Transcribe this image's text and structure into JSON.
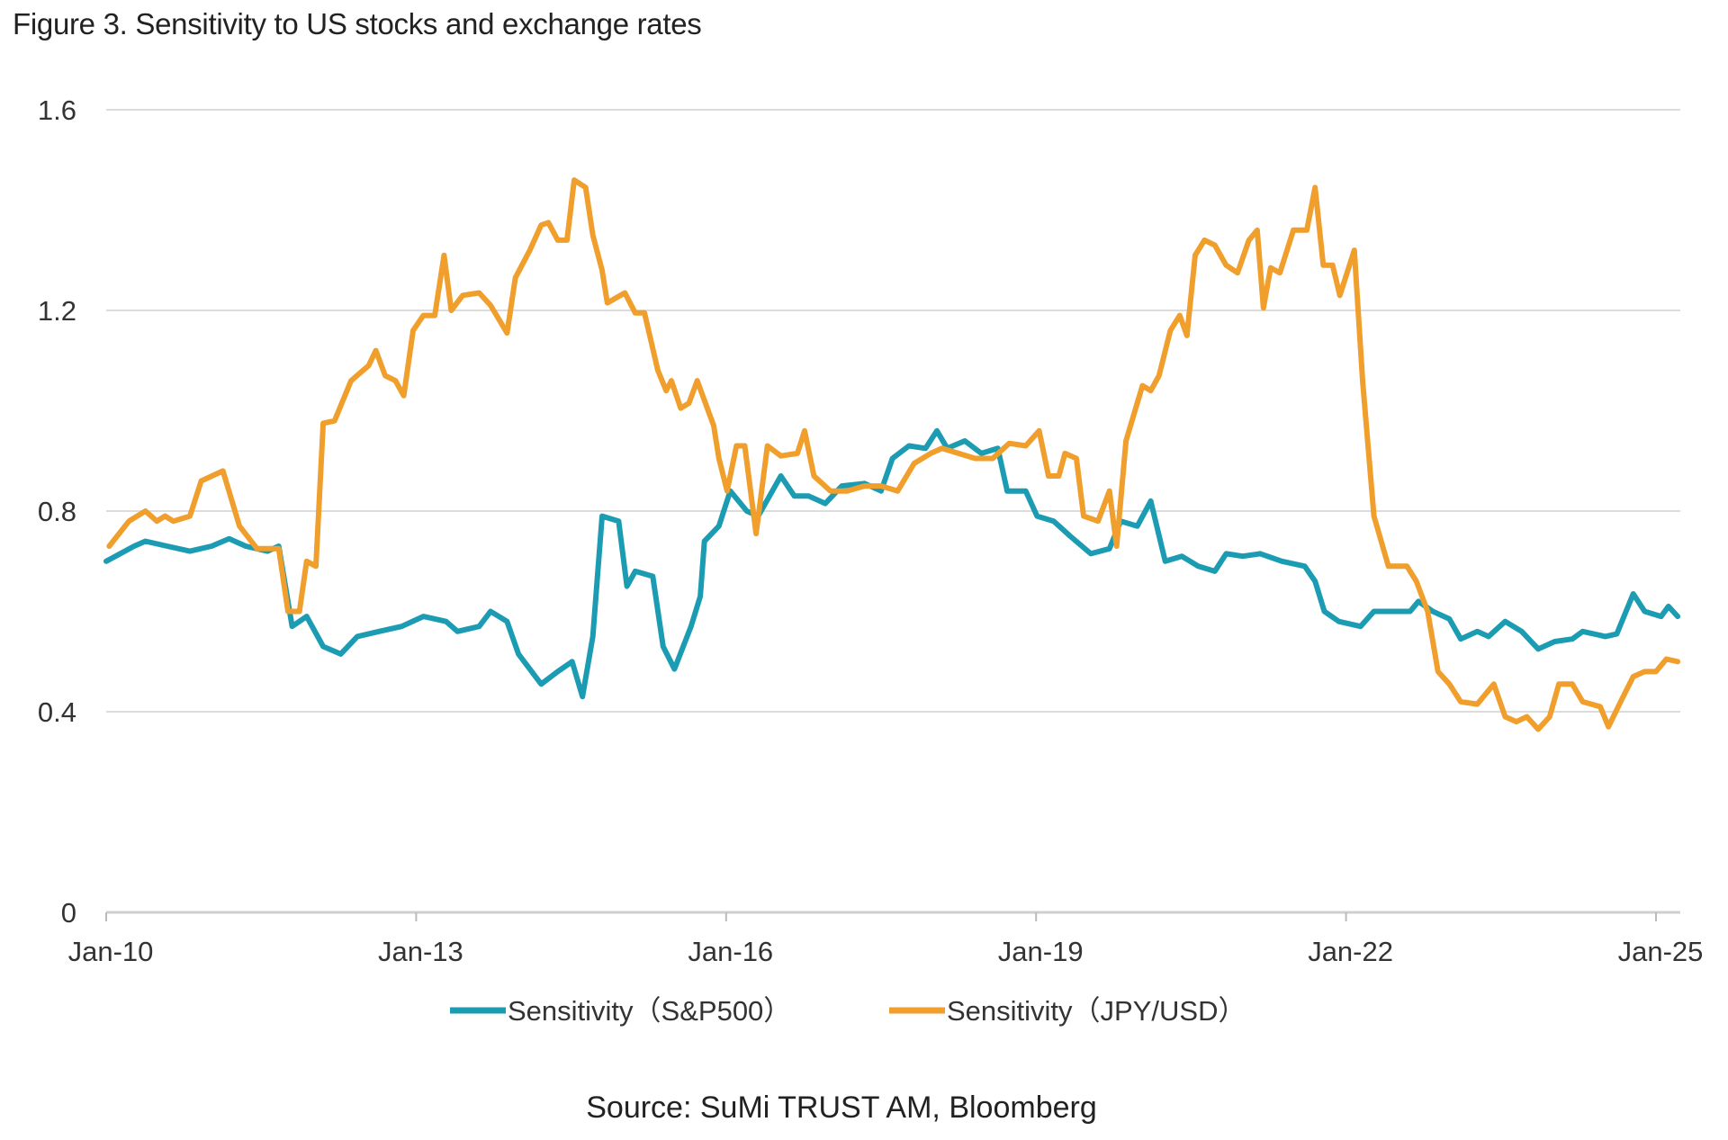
{
  "chart_data": {
    "type": "line",
    "title": "Figure 3. Sensitivity to US stocks and exchange rates",
    "source": "Source: SuMi TRUST AM, Bloomberg",
    "xlabel": "",
    "ylabel": "",
    "ylim": [
      0,
      1.6
    ],
    "xlim": [
      2010.0,
      2025.2
    ],
    "yticks": [
      0,
      0.4,
      0.8,
      1.2,
      1.6
    ],
    "ytick_labels": [
      "0",
      "0.4",
      "0.8",
      "1.2",
      "1.6"
    ],
    "xticks": [
      2010,
      2013,
      2016,
      2019,
      2022,
      2025
    ],
    "xtick_labels": [
      "Jan-10",
      "Jan-13",
      "Jan-16",
      "Jan-19",
      "Jan-22",
      "Jan-25"
    ],
    "grid": "horizontal",
    "legend_position": "bottom",
    "series": [
      {
        "name": "Sensitivity（S&P500）",
        "color": "#1b9cb3",
        "points": [
          [
            2010.0,
            0.7
          ],
          [
            2010.27,
            0.73
          ],
          [
            2010.38,
            0.74
          ],
          [
            2010.59,
            0.73
          ],
          [
            2010.81,
            0.72
          ],
          [
            2011.02,
            0.73
          ],
          [
            2011.19,
            0.745
          ],
          [
            2011.35,
            0.73
          ],
          [
            2011.56,
            0.72
          ],
          [
            2011.67,
            0.73
          ],
          [
            2011.8,
            0.57
          ],
          [
            2011.94,
            0.59
          ],
          [
            2012.1,
            0.53
          ],
          [
            2012.27,
            0.515
          ],
          [
            2012.43,
            0.55
          ],
          [
            2012.64,
            0.56
          ],
          [
            2012.86,
            0.57
          ],
          [
            2013.07,
            0.59
          ],
          [
            2013.29,
            0.58
          ],
          [
            2013.4,
            0.56
          ],
          [
            2013.61,
            0.57
          ],
          [
            2013.72,
            0.6
          ],
          [
            2013.88,
            0.58
          ],
          [
            2013.99,
            0.515
          ],
          [
            2014.21,
            0.455
          ],
          [
            2014.37,
            0.48
          ],
          [
            2014.51,
            0.5
          ],
          [
            2014.61,
            0.43
          ],
          [
            2014.71,
            0.55
          ],
          [
            2014.8,
            0.79
          ],
          [
            2014.96,
            0.78
          ],
          [
            2015.04,
            0.65
          ],
          [
            2015.12,
            0.68
          ],
          [
            2015.29,
            0.67
          ],
          [
            2015.39,
            0.53
          ],
          [
            2015.5,
            0.485
          ],
          [
            2015.66,
            0.57
          ],
          [
            2015.75,
            0.63
          ],
          [
            2015.79,
            0.74
          ],
          [
            2015.93,
            0.77
          ],
          [
            2016.04,
            0.84
          ],
          [
            2016.2,
            0.8
          ],
          [
            2016.31,
            0.79
          ],
          [
            2016.42,
            0.83
          ],
          [
            2016.53,
            0.87
          ],
          [
            2016.66,
            0.83
          ],
          [
            2016.8,
            0.83
          ],
          [
            2016.96,
            0.815
          ],
          [
            2017.12,
            0.85
          ],
          [
            2017.34,
            0.855
          ],
          [
            2017.5,
            0.84
          ],
          [
            2017.61,
            0.905
          ],
          [
            2017.77,
            0.93
          ],
          [
            2017.93,
            0.925
          ],
          [
            2018.04,
            0.96
          ],
          [
            2018.14,
            0.925
          ],
          [
            2018.31,
            0.94
          ],
          [
            2018.47,
            0.915
          ],
          [
            2018.63,
            0.925
          ],
          [
            2018.72,
            0.84
          ],
          [
            2018.9,
            0.84
          ],
          [
            2019.01,
            0.79
          ],
          [
            2019.17,
            0.78
          ],
          [
            2019.33,
            0.75
          ],
          [
            2019.53,
            0.715
          ],
          [
            2019.71,
            0.725
          ],
          [
            2019.82,
            0.78
          ],
          [
            2019.98,
            0.77
          ],
          [
            2020.11,
            0.82
          ],
          [
            2020.25,
            0.7
          ],
          [
            2020.41,
            0.71
          ],
          [
            2020.57,
            0.69
          ],
          [
            2020.73,
            0.68
          ],
          [
            2020.84,
            0.715
          ],
          [
            2021.0,
            0.71
          ],
          [
            2021.17,
            0.715
          ],
          [
            2021.38,
            0.7
          ],
          [
            2021.6,
            0.69
          ],
          [
            2021.7,
            0.66
          ],
          [
            2021.79,
            0.6
          ],
          [
            2021.93,
            0.58
          ],
          [
            2022.14,
            0.57
          ],
          [
            2022.27,
            0.6
          ],
          [
            2022.46,
            0.6
          ],
          [
            2022.62,
            0.6
          ],
          [
            2022.7,
            0.62
          ],
          [
            2022.84,
            0.6
          ],
          [
            2023.0,
            0.585
          ],
          [
            2023.11,
            0.545
          ],
          [
            2023.27,
            0.56
          ],
          [
            2023.38,
            0.55
          ],
          [
            2023.54,
            0.58
          ],
          [
            2023.7,
            0.56
          ],
          [
            2023.86,
            0.525
          ],
          [
            2024.02,
            0.54
          ],
          [
            2024.19,
            0.545
          ],
          [
            2024.29,
            0.56
          ],
          [
            2024.51,
            0.55
          ],
          [
            2024.62,
            0.555
          ],
          [
            2024.78,
            0.635
          ],
          [
            2024.89,
            0.6
          ],
          [
            2025.05,
            0.59
          ],
          [
            2025.12,
            0.61
          ],
          [
            2025.21,
            0.59
          ]
        ]
      },
      {
        "name": "Sensitivity（JPY/USD）",
        "color": "#f09e2c",
        "points": [
          [
            2010.03,
            0.73
          ],
          [
            2010.22,
            0.78
          ],
          [
            2010.38,
            0.8
          ],
          [
            2010.49,
            0.78
          ],
          [
            2010.57,
            0.79
          ],
          [
            2010.65,
            0.78
          ],
          [
            2010.81,
            0.79
          ],
          [
            2010.92,
            0.86
          ],
          [
            2011.13,
            0.88
          ],
          [
            2011.29,
            0.77
          ],
          [
            2011.46,
            0.725
          ],
          [
            2011.67,
            0.725
          ],
          [
            2011.76,
            0.6
          ],
          [
            2011.87,
            0.6
          ],
          [
            2011.94,
            0.7
          ],
          [
            2012.03,
            0.69
          ],
          [
            2012.1,
            0.975
          ],
          [
            2012.21,
            0.98
          ],
          [
            2012.37,
            1.06
          ],
          [
            2012.54,
            1.09
          ],
          [
            2012.61,
            1.12
          ],
          [
            2012.7,
            1.07
          ],
          [
            2012.8,
            1.06
          ],
          [
            2012.88,
            1.03
          ],
          [
            2012.97,
            1.16
          ],
          [
            2013.07,
            1.19
          ],
          [
            2013.18,
            1.19
          ],
          [
            2013.27,
            1.31
          ],
          [
            2013.34,
            1.2
          ],
          [
            2013.45,
            1.23
          ],
          [
            2013.61,
            1.235
          ],
          [
            2013.72,
            1.21
          ],
          [
            2013.88,
            1.155
          ],
          [
            2013.96,
            1.265
          ],
          [
            2014.1,
            1.32
          ],
          [
            2014.21,
            1.37
          ],
          [
            2014.28,
            1.375
          ],
          [
            2014.37,
            1.34
          ],
          [
            2014.46,
            1.34
          ],
          [
            2014.53,
            1.46
          ],
          [
            2014.64,
            1.445
          ],
          [
            2014.71,
            1.35
          ],
          [
            2014.8,
            1.28
          ],
          [
            2014.85,
            1.215
          ],
          [
            2015.02,
            1.235
          ],
          [
            2015.12,
            1.195
          ],
          [
            2015.21,
            1.195
          ],
          [
            2015.34,
            1.08
          ],
          [
            2015.42,
            1.04
          ],
          [
            2015.47,
            1.06
          ],
          [
            2015.56,
            1.005
          ],
          [
            2015.64,
            1.015
          ],
          [
            2015.72,
            1.06
          ],
          [
            2015.88,
            0.97
          ],
          [
            2015.93,
            0.905
          ],
          [
            2016.01,
            0.84
          ],
          [
            2016.1,
            0.93
          ],
          [
            2016.18,
            0.93
          ],
          [
            2016.29,
            0.755
          ],
          [
            2016.4,
            0.93
          ],
          [
            2016.53,
            0.91
          ],
          [
            2016.69,
            0.915
          ],
          [
            2016.76,
            0.96
          ],
          [
            2016.85,
            0.87
          ],
          [
            2017.01,
            0.84
          ],
          [
            2017.17,
            0.84
          ],
          [
            2017.34,
            0.85
          ],
          [
            2017.5,
            0.85
          ],
          [
            2017.66,
            0.84
          ],
          [
            2017.82,
            0.895
          ],
          [
            2017.98,
            0.915
          ],
          [
            2018.09,
            0.925
          ],
          [
            2018.25,
            0.915
          ],
          [
            2018.41,
            0.905
          ],
          [
            2018.58,
            0.905
          ],
          [
            2018.74,
            0.935
          ],
          [
            2018.9,
            0.93
          ],
          [
            2019.03,
            0.96
          ],
          [
            2019.12,
            0.87
          ],
          [
            2019.22,
            0.87
          ],
          [
            2019.28,
            0.915
          ],
          [
            2019.39,
            0.905
          ],
          [
            2019.46,
            0.79
          ],
          [
            2019.6,
            0.78
          ],
          [
            2019.71,
            0.84
          ],
          [
            2019.78,
            0.73
          ],
          [
            2019.87,
            0.94
          ],
          [
            2020.03,
            1.05
          ],
          [
            2020.11,
            1.04
          ],
          [
            2020.19,
            1.07
          ],
          [
            2020.3,
            1.16
          ],
          [
            2020.39,
            1.19
          ],
          [
            2020.46,
            1.15
          ],
          [
            2020.54,
            1.31
          ],
          [
            2020.63,
            1.34
          ],
          [
            2020.73,
            1.33
          ],
          [
            2020.84,
            1.29
          ],
          [
            2020.95,
            1.275
          ],
          [
            2021.06,
            1.34
          ],
          [
            2021.14,
            1.36
          ],
          [
            2021.2,
            1.205
          ],
          [
            2021.27,
            1.285
          ],
          [
            2021.36,
            1.275
          ],
          [
            2021.49,
            1.36
          ],
          [
            2021.62,
            1.36
          ],
          [
            2021.7,
            1.445
          ],
          [
            2021.78,
            1.29
          ],
          [
            2021.87,
            1.29
          ],
          [
            2021.94,
            1.23
          ],
          [
            2022.08,
            1.32
          ],
          [
            2022.16,
            1.06
          ],
          [
            2022.27,
            0.79
          ],
          [
            2022.41,
            0.69
          ],
          [
            2022.59,
            0.69
          ],
          [
            2022.68,
            0.66
          ],
          [
            2022.79,
            0.6
          ],
          [
            2022.89,
            0.48
          ],
          [
            2023.0,
            0.455
          ],
          [
            2023.11,
            0.42
          ],
          [
            2023.27,
            0.415
          ],
          [
            2023.43,
            0.455
          ],
          [
            2023.54,
            0.39
          ],
          [
            2023.65,
            0.38
          ],
          [
            2023.75,
            0.39
          ],
          [
            2023.86,
            0.365
          ],
          [
            2023.97,
            0.39
          ],
          [
            2024.06,
            0.455
          ],
          [
            2024.19,
            0.455
          ],
          [
            2024.29,
            0.42
          ],
          [
            2024.46,
            0.41
          ],
          [
            2024.54,
            0.37
          ],
          [
            2024.67,
            0.425
          ],
          [
            2024.78,
            0.47
          ],
          [
            2024.89,
            0.48
          ],
          [
            2025.0,
            0.48
          ],
          [
            2025.1,
            0.505
          ],
          [
            2025.21,
            0.5
          ]
        ]
      }
    ]
  }
}
